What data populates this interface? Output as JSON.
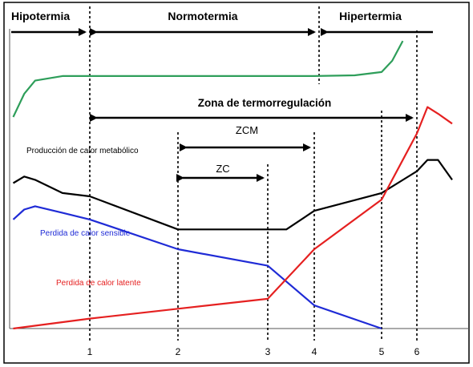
{
  "chart_data": {
    "type": "line",
    "title": "",
    "xlabel": "",
    "ylabel": "",
    "x_ticks": [
      "1",
      "2",
      "3",
      "4",
      "5",
      "6"
    ],
    "zones": [
      {
        "name": "hipotermia",
        "label": "Hipotermia",
        "from": 0.0,
        "to": 1.0
      },
      {
        "name": "normotermia",
        "label": "Normotermia",
        "from": 1.0,
        "to": 4.6
      },
      {
        "name": "hipertermia",
        "label": "Hipertermia",
        "from": 4.6,
        "to": 6.6
      }
    ],
    "ranges": [
      {
        "name": "zona-termorregulacion",
        "label": "Zona de termorregulación",
        "from": 1.0,
        "to": 6.0
      },
      {
        "name": "zcm",
        "label": "ZCM",
        "from": 2.0,
        "to": 4.0
      },
      {
        "name": "zc",
        "label": "ZC",
        "from": 2.0,
        "to": 3.0
      }
    ],
    "series": [
      {
        "name": "",
        "color": "#2e9e5a",
        "points": [
          [
            -0.4,
            3.2
          ],
          [
            -0.2,
            3.55
          ],
          [
            0.0,
            3.75
          ],
          [
            0.5,
            3.82
          ],
          [
            1.0,
            3.82
          ],
          [
            2.0,
            3.82
          ],
          [
            3.0,
            3.82
          ],
          [
            4.0,
            3.82
          ],
          [
            4.6,
            3.83
          ],
          [
            5.0,
            3.88
          ],
          [
            5.3,
            4.05
          ],
          [
            5.6,
            4.35
          ]
        ]
      },
      {
        "name": "Producción de calor metabólico",
        "color": "#000000",
        "points": [
          [
            -0.4,
            2.2
          ],
          [
            -0.2,
            2.3
          ],
          [
            0.0,
            2.25
          ],
          [
            0.5,
            2.05
          ],
          [
            1.0,
            2.0
          ],
          [
            2.0,
            1.5
          ],
          [
            3.0,
            1.5
          ],
          [
            3.4,
            1.5
          ],
          [
            4.0,
            1.78
          ],
          [
            5.0,
            2.05
          ],
          [
            6.0,
            2.38
          ],
          [
            6.3,
            2.55
          ],
          [
            6.6,
            2.55
          ],
          [
            7.0,
            2.25
          ]
        ]
      },
      {
        "name": "Perdida de calor sensible",
        "color": "#1f2bd6",
        "points": [
          [
            -0.4,
            1.65
          ],
          [
            -0.2,
            1.8
          ],
          [
            0.0,
            1.85
          ],
          [
            0.5,
            1.75
          ],
          [
            1.0,
            1.65
          ],
          [
            2.0,
            1.2
          ],
          [
            3.0,
            0.95
          ],
          [
            4.0,
            0.35
          ],
          [
            5.0,
            0.0
          ]
        ]
      },
      {
        "name": "Perdida de calor latente",
        "color": "#e52020",
        "points": [
          [
            -0.4,
            0.0
          ],
          [
            1.0,
            0.15
          ],
          [
            2.0,
            0.3
          ],
          [
            3.0,
            0.45
          ],
          [
            4.0,
            1.2
          ],
          [
            5.0,
            1.95
          ],
          [
            6.0,
            2.95
          ],
          [
            6.3,
            3.35
          ],
          [
            6.6,
            3.25
          ],
          [
            7.0,
            3.1
          ]
        ]
      }
    ]
  }
}
